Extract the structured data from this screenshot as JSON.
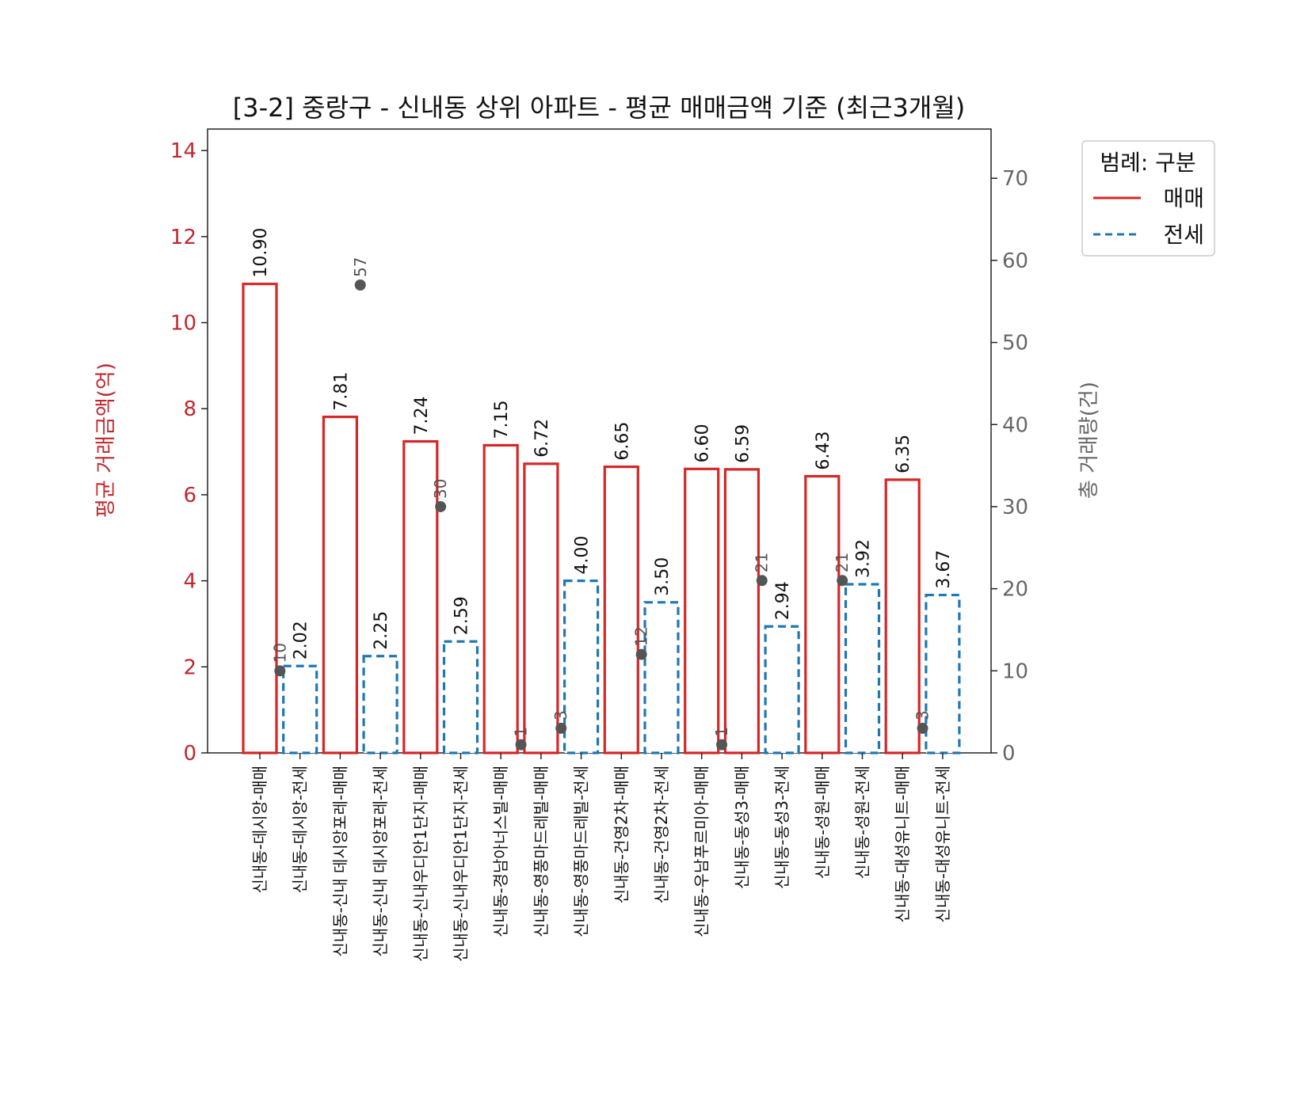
{
  "chart_data": {
    "type": "bar",
    "title": "[3-2] 중랑구 - 신내동 상위 아파트 - 평균 매매금액 기준 (최근3개월)",
    "ylabel_left": "평균 거래금액(억)",
    "ylabel_right": "총 거래량(건)",
    "ylim_left": [
      0,
      14.5
    ],
    "ylim_right": [
      0,
      76
    ],
    "yticks_left": [
      0,
      2,
      4,
      6,
      8,
      10,
      12,
      14
    ],
    "yticks_right": [
      0,
      10,
      20,
      30,
      40,
      50,
      60,
      70
    ],
    "categories": [
      "신내동-데시앙-매매",
      "신내동-데시앙-전세",
      "신내동-신내 데시앙포레-매매",
      "신내동-신내 데시앙포레-전세",
      "신내동-신내우디안1단지-매매",
      "신내동-신내우디안1단지-전세",
      "신내동-경남아너스빌-매매",
      "신내동-영풍마드레빌-매매",
      "신내동-영풍마드레빌-전세",
      "신내동-건영2차-매매",
      "신내동-건영2차-전세",
      "신내동-우남푸르미아-매매",
      "신내동-동성3-매매",
      "신내동-동성3-전세",
      "신내동-성원-매매",
      "신내동-성원-전세",
      "신내동-대성유니트-매매",
      "신내동-대성유니트-전세"
    ],
    "bars": [
      {
        "value": 10.9,
        "label": "10.90",
        "kind": "매매"
      },
      {
        "value": 2.02,
        "label": "2.02",
        "kind": "전세"
      },
      {
        "value": 7.81,
        "label": "7.81",
        "kind": "매매"
      },
      {
        "value": 2.25,
        "label": "2.25",
        "kind": "전세"
      },
      {
        "value": 7.24,
        "label": "7.24",
        "kind": "매매"
      },
      {
        "value": 2.59,
        "label": "2.59",
        "kind": "전세"
      },
      {
        "value": 7.15,
        "label": "7.15",
        "kind": "매매"
      },
      {
        "value": 6.72,
        "label": "6.72",
        "kind": "매매"
      },
      {
        "value": 4.0,
        "label": "4.00",
        "kind": "전세"
      },
      {
        "value": 6.65,
        "label": "6.65",
        "kind": "매매"
      },
      {
        "value": 3.5,
        "label": "3.50",
        "kind": "전세"
      },
      {
        "value": 6.6,
        "label": "6.60",
        "kind": "매매"
      },
      {
        "value": 6.59,
        "label": "6.59",
        "kind": "매매"
      },
      {
        "value": 2.94,
        "label": "2.94",
        "kind": "전세"
      },
      {
        "value": 6.43,
        "label": "6.43",
        "kind": "매매"
      },
      {
        "value": 3.92,
        "label": "3.92",
        "kind": "전세"
      },
      {
        "value": 6.35,
        "label": "6.35",
        "kind": "매매"
      },
      {
        "value": 3.67,
        "label": "3.67",
        "kind": "전세"
      }
    ],
    "volume_points": [
      {
        "x": 0.5,
        "value": 10,
        "label": "10"
      },
      {
        "x": 2.5,
        "value": 57,
        "label": "57"
      },
      {
        "x": 4.5,
        "value": 30,
        "label": "30"
      },
      {
        "x": 6.5,
        "value": 1,
        "label": "1"
      },
      {
        "x": 7.5,
        "value": 3,
        "label": "3"
      },
      {
        "x": 9.5,
        "value": 12,
        "label": "12"
      },
      {
        "x": 11.5,
        "value": 1,
        "label": "1"
      },
      {
        "x": 12.5,
        "value": 21,
        "label": "21"
      },
      {
        "x": 14.5,
        "value": 21,
        "label": "21"
      },
      {
        "x": 16.5,
        "value": 3,
        "label": "3"
      }
    ],
    "legend": {
      "title": "범례: 구분",
      "placement": "outside-top-right",
      "items": [
        {
          "label": "매매",
          "style": "solid",
          "color": "#d62728"
        },
        {
          "label": "전세",
          "style": "dashed",
          "color": "#1f77b4"
        }
      ]
    },
    "colors": {
      "sale": "#d62728",
      "jeonse": "#1f77b4",
      "left_axis": "#c0272d",
      "right_axis": "#666666",
      "points": "#555555"
    }
  }
}
